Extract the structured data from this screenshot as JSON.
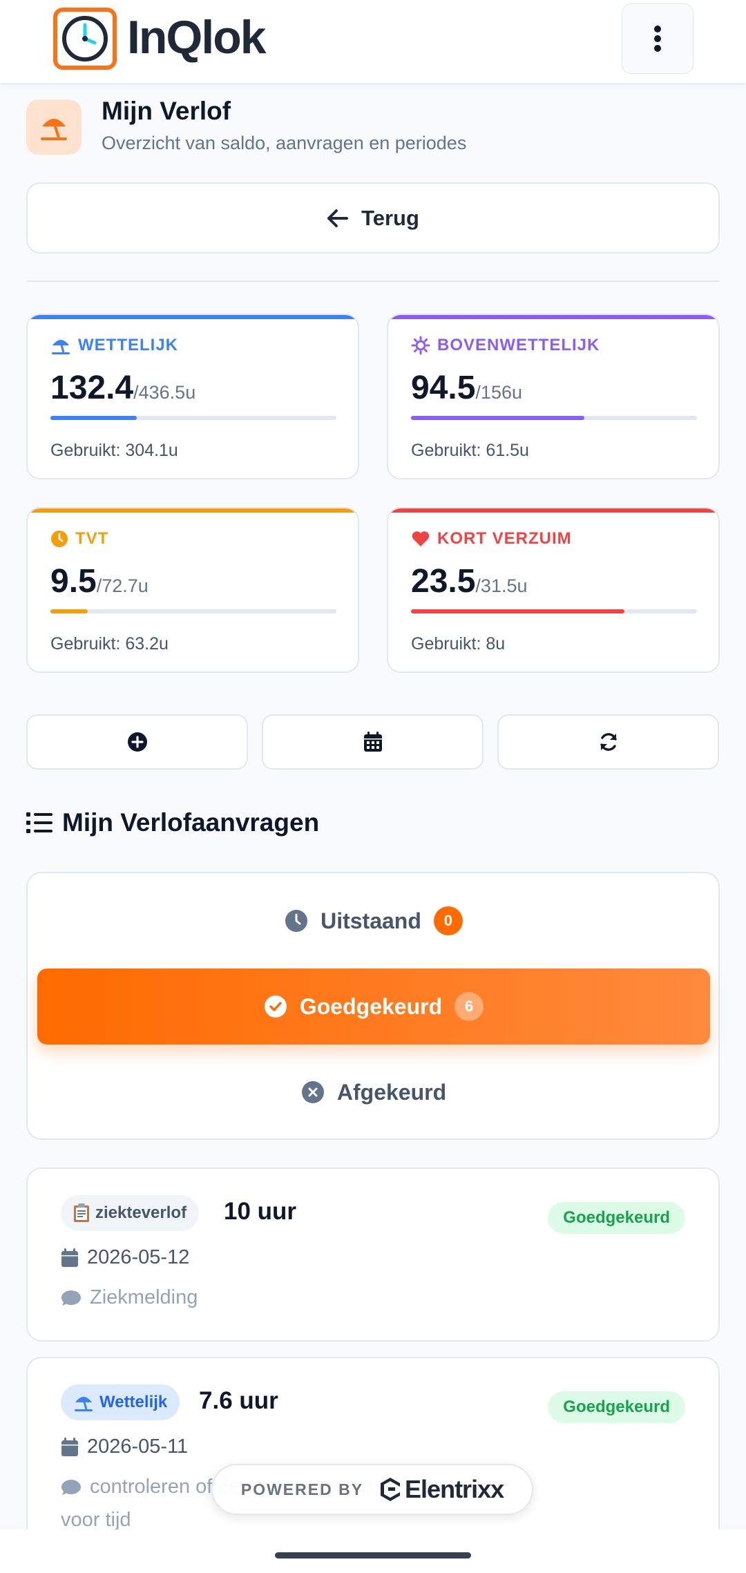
{
  "header": {
    "logo_text": "InQlok",
    "colors": {
      "brand": "#f97316"
    }
  },
  "page": {
    "title": "Mijn Verlof",
    "subtitle": "Overzicht van saldo, aanvragen en periodes",
    "back_label": "Terug"
  },
  "balances": [
    {
      "label": "WETTELIJK",
      "icon": "umbrella-beach-icon",
      "remaining": "132.4",
      "total": "/436.5u",
      "used": "Gebruikt: 304.1u",
      "fraction": 0.303,
      "color": "#3b82f6"
    },
    {
      "label": "BOVENWETTELIJK",
      "icon": "sun-icon",
      "remaining": "94.5",
      "total": "/156u",
      "used": "Gebruikt: 61.5u",
      "fraction": 0.606,
      "color": "#8b5cf6"
    },
    {
      "label": "TVT",
      "icon": "clock-icon",
      "remaining": "9.5",
      "total": "/72.7u",
      "used": "Gebruikt: 63.2u",
      "fraction": 0.131,
      "color": "#f59e0b"
    },
    {
      "label": "KORT VERZUIM",
      "icon": "heart-icon",
      "remaining": "23.5",
      "total": "/31.5u",
      "used": "Gebruikt: 8u",
      "fraction": 0.746,
      "color": "#ef4444"
    }
  ],
  "actions": [
    {
      "icon": "plus-circle-icon"
    },
    {
      "icon": "calendar-icon"
    },
    {
      "icon": "refresh-icon"
    }
  ],
  "requests_section": {
    "title": "Mijn Verlofaanvragen",
    "filters": [
      {
        "label": "Uitstaand",
        "count": "0",
        "active": false
      },
      {
        "label": "Goedgekeurd",
        "count": "6",
        "active": true
      },
      {
        "label": "Afgekeurd",
        "active": false
      }
    ],
    "items": [
      {
        "type": "ziekteverlof",
        "type_icon": "clipboard-icon",
        "hours": "10 uur",
        "status": "Goedgekeurd",
        "date": "2026-05-12",
        "comment": "Ziekmelding"
      },
      {
        "type": "Wettelijk",
        "type_icon": "umbrella-beach-icon",
        "hours": "7.6 uur",
        "status": "Goedgekeurd",
        "date": "2026-05-11",
        "comment": "controleren of de werknemer op tijd",
        "comment_line2": "voor tijd"
      }
    ]
  },
  "footer": {
    "powered_label": "POWERED BY",
    "brand": "Elentrixx"
  }
}
